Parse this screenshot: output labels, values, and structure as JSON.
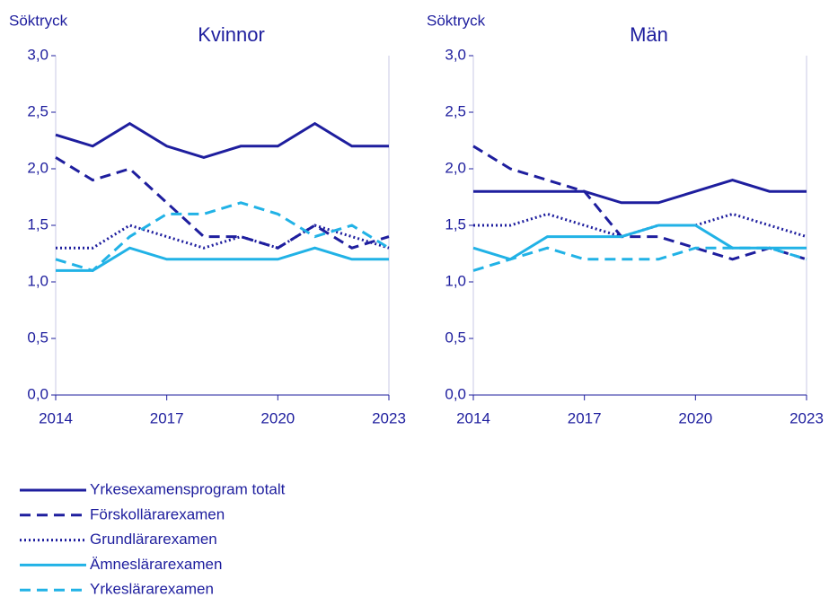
{
  "chart_data": [
    {
      "type": "line",
      "title": "Kvinnor",
      "y_label": "Söktryck",
      "x": [
        2014,
        2015,
        2016,
        2017,
        2018,
        2019,
        2020,
        2021,
        2022,
        2023
      ],
      "xlim": [
        2014,
        2023
      ],
      "xticks": [
        2014,
        2017,
        2020,
        2023
      ],
      "ylim": [
        0,
        3
      ],
      "yticks": [
        {
          "value": 0,
          "label": "0,0"
        },
        {
          "value": 0.5,
          "label": "0,5"
        },
        {
          "value": 1,
          "label": "1,0"
        },
        {
          "value": 1.5,
          "label": "1,5"
        },
        {
          "value": 2,
          "label": "2,0"
        },
        {
          "value": 2.5,
          "label": "2,5"
        },
        {
          "value": 3,
          "label": "3,0"
        }
      ],
      "series": [
        {
          "name": "Yrkesexamensprogram totalt",
          "color": "#1e1e9e",
          "style": "solid",
          "values": [
            2.3,
            2.2,
            2.4,
            2.2,
            2.1,
            2.2,
            2.2,
            2.4,
            2.2,
            2.2
          ]
        },
        {
          "name": "Förskollärarexamen",
          "color": "#1e1e9e",
          "style": "dashed",
          "values": [
            2.1,
            1.9,
            2.0,
            1.7,
            1.4,
            1.4,
            1.3,
            1.5,
            1.3,
            1.4
          ]
        },
        {
          "name": "Grundlärarexamen",
          "color": "#1e1e9e",
          "style": "dotted",
          "values": [
            1.3,
            1.3,
            1.5,
            1.4,
            1.3,
            1.4,
            1.3,
            1.5,
            1.4,
            1.3
          ]
        },
        {
          "name": "Ämneslärarexamen",
          "color": "#21b2e6",
          "style": "solid",
          "values": [
            1.1,
            1.1,
            1.3,
            1.2,
            1.2,
            1.2,
            1.2,
            1.3,
            1.2,
            1.2
          ]
        },
        {
          "name": "Yrkeslärarexamen",
          "color": "#21b2e6",
          "style": "dashed",
          "values": [
            1.2,
            1.1,
            1.4,
            1.6,
            1.6,
            1.7,
            1.6,
            1.4,
            1.5,
            1.3
          ]
        }
      ]
    },
    {
      "type": "line",
      "title": "Män",
      "y_label": "Söktryck",
      "x": [
        2014,
        2015,
        2016,
        2017,
        2018,
        2019,
        2020,
        2021,
        2022,
        2023
      ],
      "xlim": [
        2014,
        2023
      ],
      "xticks": [
        2014,
        2017,
        2020,
        2023
      ],
      "ylim": [
        0,
        3
      ],
      "yticks": [
        {
          "value": 0,
          "label": "0,0"
        },
        {
          "value": 0.5,
          "label": "0,5"
        },
        {
          "value": 1,
          "label": "1,0"
        },
        {
          "value": 1.5,
          "label": "1,5"
        },
        {
          "value": 2,
          "label": "2,0"
        },
        {
          "value": 2.5,
          "label": "2,5"
        },
        {
          "value": 3,
          "label": "3,0"
        }
      ],
      "series": [
        {
          "color": "#1e1e9e",
          "style": "solid",
          "values": [
            1.8,
            1.8,
            1.8,
            1.8,
            1.7,
            1.7,
            1.8,
            1.9,
            1.8,
            1.8
          ]
        },
        {
          "color": "#1e1e9e",
          "style": "dashed",
          "values": [
            2.2,
            2.0,
            1.9,
            1.8,
            1.4,
            1.4,
            1.3,
            1.2,
            1.3,
            1.2
          ]
        },
        {
          "color": "#1e1e9e",
          "style": "dotted",
          "values": [
            1.5,
            1.5,
            1.6,
            1.5,
            1.4,
            1.5,
            1.5,
            1.6,
            1.5,
            1.4
          ]
        },
        {
          "color": "#21b2e6",
          "style": "solid",
          "values": [
            1.3,
            1.2,
            1.4,
            1.4,
            1.4,
            1.5,
            1.5,
            1.3,
            1.3,
            1.3
          ]
        },
        {
          "color": "#21b2e6",
          "style": "dashed",
          "values": [
            1.1,
            1.2,
            1.3,
            1.2,
            1.2,
            1.2,
            1.3,
            1.3,
            1.3,
            1.2
          ]
        }
      ]
    }
  ]
}
